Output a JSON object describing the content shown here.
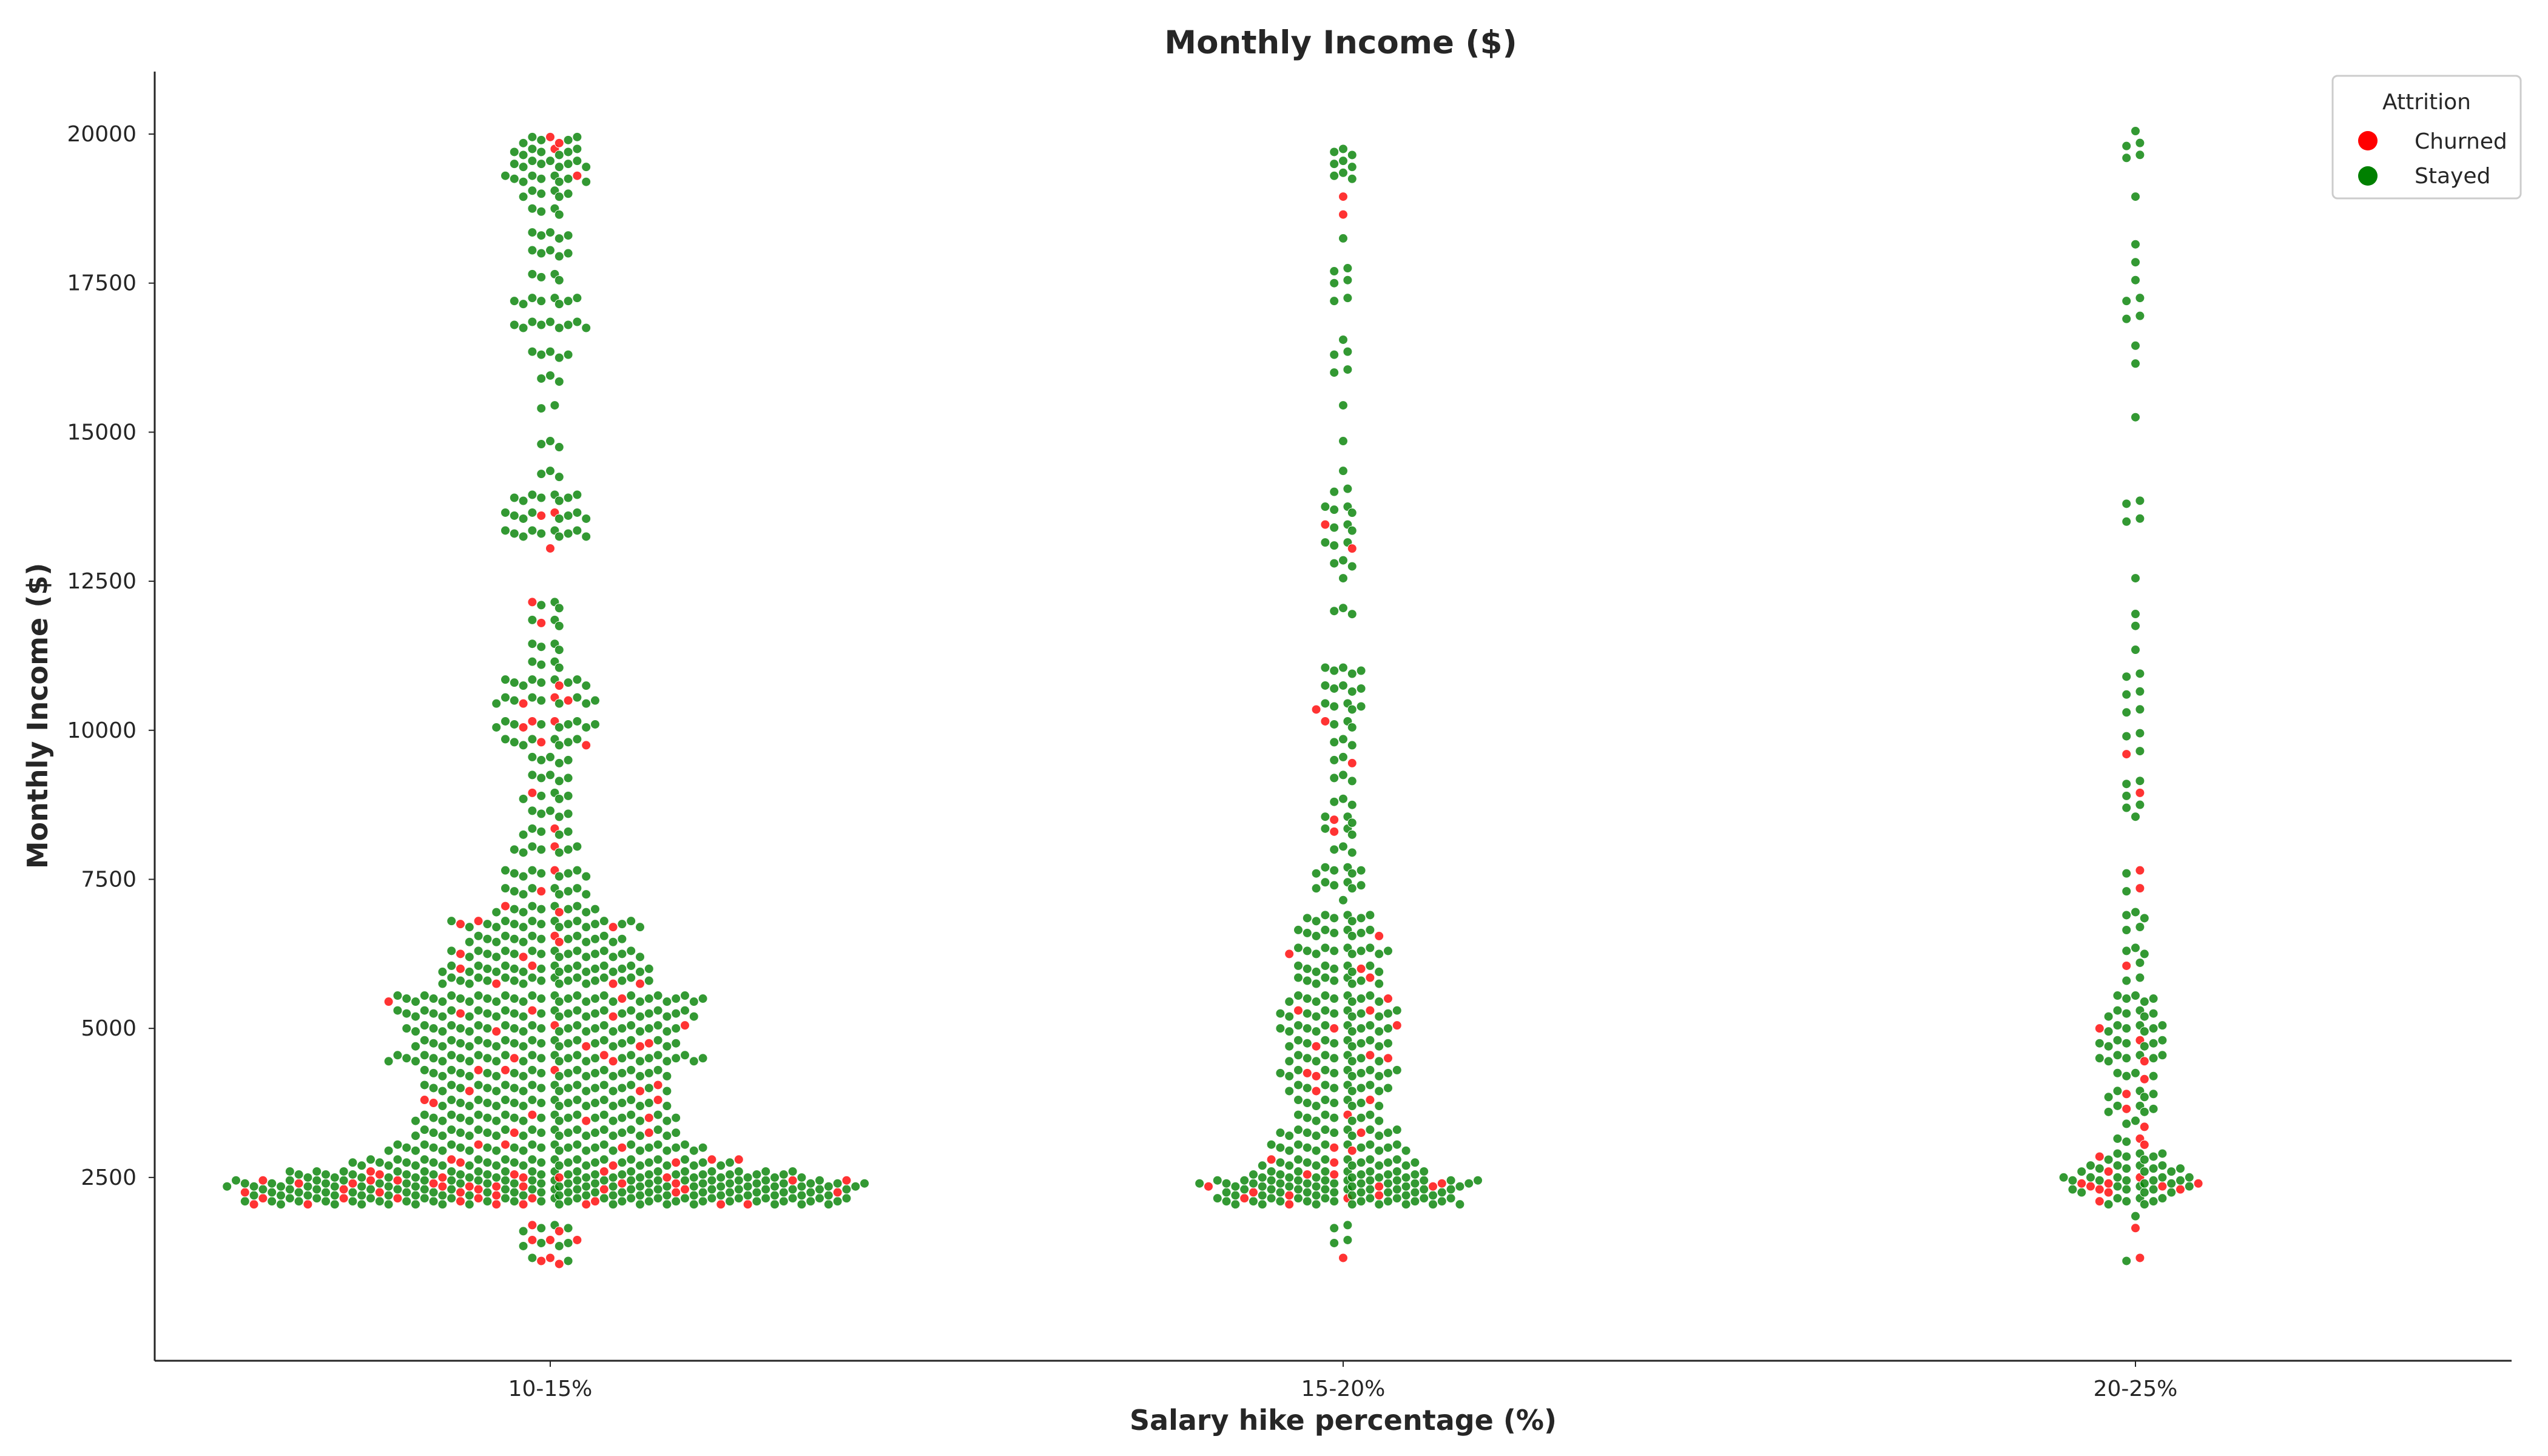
{
  "chart_data": {
    "type": "swarm",
    "title": "Monthly Income ($)",
    "xlabel": "Salary hike percentage (%)",
    "ylabel": "Monthly Income ($)",
    "categories": [
      "10-15%",
      "15-20%",
      "20-25%"
    ],
    "ylim": [
      200,
      21000
    ],
    "yticks": [
      2500,
      5000,
      7500,
      10000,
      12500,
      15000,
      17500,
      20000
    ],
    "grid": false,
    "legend": {
      "title": "Attrition",
      "placement": "top-right",
      "entries": [
        {
          "label": "Churned",
          "color": "#ff0000"
        },
        {
          "label": "Stayed",
          "color": "#008000"
        }
      ]
    },
    "colors": {
      "Churned": "#ff0000",
      "Stayed": "#008000"
    },
    "density": [
      {
        "category": "10-15%",
        "bins": [
          [
            1100,
            5,
            3
          ],
          [
            1400,
            7,
            3
          ],
          [
            1650,
            6,
            2
          ],
          [
            2100,
            68,
            14
          ],
          [
            2250,
            68,
            10
          ],
          [
            2400,
            72,
            14
          ],
          [
            2550,
            58,
            8
          ],
          [
            2750,
            44,
            6
          ],
          [
            3000,
            36,
            3
          ],
          [
            3250,
            30,
            2
          ],
          [
            3500,
            30,
            3
          ],
          [
            3750,
            28,
            3
          ],
          [
            4000,
            28,
            3
          ],
          [
            4250,
            28,
            3
          ],
          [
            4500,
            36,
            3
          ],
          [
            4750,
            30,
            3
          ],
          [
            5000,
            32,
            3
          ],
          [
            5250,
            34,
            3
          ],
          [
            5500,
            36,
            2
          ],
          [
            5800,
            24,
            3
          ],
          [
            6000,
            24,
            2
          ],
          [
            6250,
            22,
            2
          ],
          [
            6500,
            18,
            2
          ],
          [
            6750,
            22,
            3
          ],
          [
            7000,
            12,
            2
          ],
          [
            7300,
            10,
            1
          ],
          [
            7600,
            10,
            1
          ],
          [
            8000,
            8,
            1
          ],
          [
            8300,
            6,
            1
          ],
          [
            8600,
            5,
            0
          ],
          [
            8900,
            6,
            1
          ],
          [
            9200,
            5,
            0
          ],
          [
            9500,
            5,
            0
          ],
          [
            9800,
            10,
            2
          ],
          [
            10100,
            12,
            3
          ],
          [
            10500,
            12,
            3
          ],
          [
            10800,
            10,
            1
          ],
          [
            11100,
            4,
            0
          ],
          [
            11400,
            4,
            0
          ],
          [
            11800,
            4,
            1
          ],
          [
            12100,
            4,
            1
          ],
          [
            13000,
            1,
            1
          ],
          [
            13300,
            10,
            0
          ],
          [
            13600,
            10,
            2
          ],
          [
            13900,
            8,
            0
          ],
          [
            14300,
            3,
            0
          ],
          [
            14800,
            3,
            0
          ],
          [
            15400,
            2,
            0
          ],
          [
            15900,
            3,
            0
          ],
          [
            16300,
            5,
            0
          ],
          [
            16800,
            9,
            0
          ],
          [
            17200,
            8,
            0
          ],
          [
            17600,
            4,
            0
          ],
          [
            18000,
            5,
            0
          ],
          [
            18300,
            5,
            0
          ],
          [
            18700,
            4,
            0
          ],
          [
            19000,
            6,
            0
          ],
          [
            19250,
            10,
            1
          ],
          [
            19500,
            9,
            0
          ],
          [
            19700,
            8,
            1
          ],
          [
            19900,
            7,
            2
          ]
        ]
      },
      {
        "category": "15-20%",
        "bins": [
          [
            1100,
            1,
            1
          ],
          [
            1400,
            2,
            0
          ],
          [
            1650,
            2,
            0
          ],
          [
            2100,
            28,
            3
          ],
          [
            2250,
            26,
            3
          ],
          [
            2400,
            32,
            4
          ],
          [
            2550,
            20,
            2
          ],
          [
            2750,
            18,
            2
          ],
          [
            3000,
            16,
            2
          ],
          [
            3250,
            14,
            1
          ],
          [
            3500,
            10,
            1
          ],
          [
            3750,
            10,
            1
          ],
          [
            4000,
            12,
            1
          ],
          [
            4250,
            14,
            2
          ],
          [
            4500,
            12,
            2
          ],
          [
            4750,
            12,
            1
          ],
          [
            5000,
            14,
            2
          ],
          [
            5250,
            14,
            2
          ],
          [
            5500,
            12,
            1
          ],
          [
            5800,
            10,
            1
          ],
          [
            6000,
            10,
            1
          ],
          [
            6300,
            12,
            1
          ],
          [
            6600,
            10,
            1
          ],
          [
            6850,
            8,
            0
          ],
          [
            7100,
            1,
            0
          ],
          [
            7400,
            6,
            0
          ],
          [
            7650,
            6,
            0
          ],
          [
            8000,
            3,
            0
          ],
          [
            8300,
            4,
            1
          ],
          [
            8500,
            4,
            1
          ],
          [
            8800,
            3,
            0
          ],
          [
            9200,
            3,
            0
          ],
          [
            9500,
            3,
            1
          ],
          [
            9800,
            3,
            0
          ],
          [
            10100,
            4,
            1
          ],
          [
            10400,
            6,
            1
          ],
          [
            10700,
            5,
            0
          ],
          [
            11000,
            5,
            0
          ],
          [
            12000,
            3,
            0
          ],
          [
            12500,
            1,
            0
          ],
          [
            12800,
            3,
            0
          ],
          [
            13100,
            4,
            1
          ],
          [
            13400,
            4,
            1
          ],
          [
            13700,
            4,
            0
          ],
          [
            14000,
            2,
            0
          ],
          [
            14300,
            1,
            0
          ],
          [
            14800,
            1,
            0
          ],
          [
            15400,
            1,
            0
          ],
          [
            16000,
            2,
            0
          ],
          [
            16300,
            2,
            0
          ],
          [
            16500,
            1,
            0
          ],
          [
            17200,
            2,
            0
          ],
          [
            17500,
            2,
            0
          ],
          [
            17700,
            2,
            0
          ],
          [
            18200,
            1,
            0
          ],
          [
            18600,
            1,
            1
          ],
          [
            18900,
            1,
            1
          ],
          [
            19300,
            3,
            0
          ],
          [
            19500,
            3,
            0
          ],
          [
            19700,
            3,
            0
          ]
        ]
      },
      {
        "category": "20-25%",
        "bins": [
          [
            1100,
            2,
            1
          ],
          [
            1600,
            1,
            1
          ],
          [
            1800,
            1,
            0
          ],
          [
            2100,
            8,
            1
          ],
          [
            2300,
            14,
            5
          ],
          [
            2450,
            16,
            4
          ],
          [
            2650,
            12,
            1
          ],
          [
            2850,
            8,
            1
          ],
          [
            3100,
            4,
            2
          ],
          [
            3400,
            3,
            1
          ],
          [
            3650,
            6,
            1
          ],
          [
            3900,
            6,
            1
          ],
          [
            4200,
            5,
            1
          ],
          [
            4500,
            8,
            1
          ],
          [
            4750,
            8,
            1
          ],
          [
            5000,
            8,
            1
          ],
          [
            5250,
            6,
            0
          ],
          [
            5500,
            5,
            0
          ],
          [
            5800,
            2,
            0
          ],
          [
            6050,
            2,
            1
          ],
          [
            6300,
            3,
            0
          ],
          [
            6650,
            2,
            0
          ],
          [
            6900,
            3,
            0
          ],
          [
            7300,
            2,
            1
          ],
          [
            7600,
            2,
            1
          ],
          [
            8500,
            1,
            0
          ],
          [
            8700,
            2,
            0
          ],
          [
            8900,
            2,
            1
          ],
          [
            9100,
            2,
            0
          ],
          [
            9600,
            2,
            1
          ],
          [
            9900,
            2,
            0
          ],
          [
            10300,
            2,
            0
          ],
          [
            10600,
            2,
            0
          ],
          [
            10900,
            2,
            0
          ],
          [
            11300,
            1,
            0
          ],
          [
            11700,
            1,
            0
          ],
          [
            11900,
            1,
            0
          ],
          [
            12500,
            1,
            0
          ],
          [
            13500,
            2,
            0
          ],
          [
            13800,
            2,
            0
          ],
          [
            15200,
            1,
            0
          ],
          [
            16100,
            1,
            0
          ],
          [
            16400,
            1,
            0
          ],
          [
            16900,
            2,
            0
          ],
          [
            17200,
            2,
            0
          ],
          [
            17500,
            1,
            0
          ],
          [
            17800,
            1,
            0
          ],
          [
            18100,
            1,
            0
          ],
          [
            18900,
            1,
            0
          ],
          [
            19600,
            2,
            0
          ],
          [
            19800,
            2,
            0
          ],
          [
            20000,
            1,
            0
          ]
        ]
      }
    ]
  }
}
